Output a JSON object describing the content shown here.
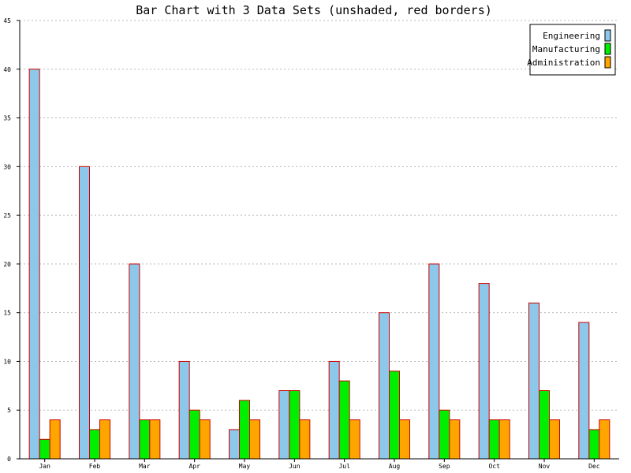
{
  "chart_data": {
    "type": "bar",
    "title": "Bar Chart with 3 Data Sets (unshaded, red borders)",
    "xlabel": "",
    "ylabel": "",
    "categories": [
      "Jan",
      "Feb",
      "Mar",
      "Apr",
      "May",
      "Jun",
      "Jul",
      "Aug",
      "Sep",
      "Oct",
      "Nov",
      "Dec"
    ],
    "series": [
      {
        "name": "Engineering",
        "color": "#8dc8ea",
        "values": [
          40,
          30,
          20,
          10,
          3,
          7,
          10,
          15,
          20,
          18,
          16,
          14
        ]
      },
      {
        "name": "Manufacturing",
        "color": "#00ee00",
        "values": [
          2,
          3,
          4,
          5,
          6,
          7,
          8,
          9,
          5,
          4,
          7,
          3
        ]
      },
      {
        "name": "Administration",
        "color": "#ffa500",
        "values": [
          4,
          4,
          4,
          4,
          4,
          4,
          4,
          4,
          4,
          4,
          4,
          4
        ]
      }
    ],
    "border_color": "#cc0000",
    "ylim": [
      0,
      45
    ],
    "yticks": [
      "0",
      "5",
      "10",
      "15",
      "20",
      "25",
      "30",
      "35",
      "40",
      "45"
    ],
    "grid": "horizontal dotted",
    "legend_position": "top-right"
  }
}
